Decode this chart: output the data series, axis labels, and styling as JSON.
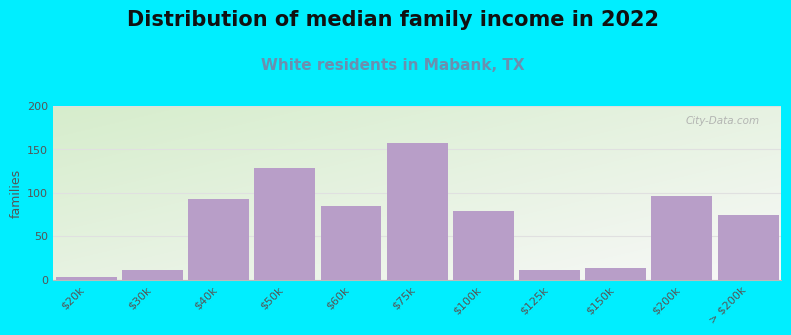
{
  "title": "Distribution of median family income in 2022",
  "subtitle": "White residents in Mabank, TX",
  "ylabel": "families",
  "categories": [
    "$20k",
    "$30k",
    "$40k",
    "$50k",
    "$60k",
    "$75k",
    "$100k",
    "$125k",
    "$150k",
    "$200k",
    "> $200k"
  ],
  "values": [
    3,
    11,
    93,
    128,
    84,
    157,
    79,
    11,
    13,
    96,
    74
  ],
  "bar_color": "#b89ec8",
  "background_outer": "#00eeff",
  "plot_bg_top_left": "#d6edcc",
  "plot_bg_bottom_right": "#f8f8f8",
  "title_fontsize": 15,
  "subtitle_fontsize": 11,
  "subtitle_color": "#6b8faf",
  "ylabel_fontsize": 9,
  "tick_fontsize": 8,
  "ylim": [
    0,
    200
  ],
  "yticks": [
    0,
    50,
    100,
    150,
    200
  ],
  "watermark": "City-Data.com",
  "watermark_color": "#aaaaaa"
}
